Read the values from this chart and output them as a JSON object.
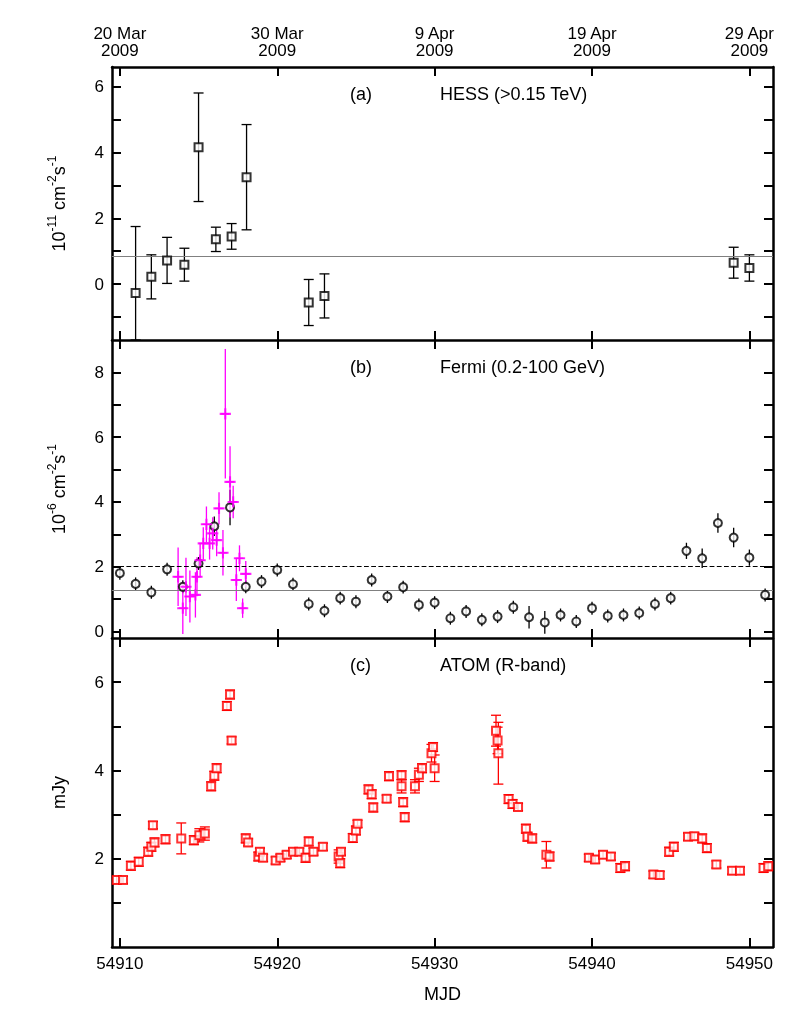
{
  "chart_data": [
    {
      "type": "scatter",
      "ylabel": "10$^{-11}$ cm$^{-2}$s$^{-1}$",
      "annotations": [
        "(a)",
        "HESS (>0.15 TeV)"
      ],
      "xlim": [
        54909.5,
        54951.5
      ],
      "xticks": [
        54910,
        54920,
        54930,
        54940,
        54950
      ],
      "x2lim": [
        "2009-03-19T12:00",
        "2009-04-30T12:00"
      ],
      "x2ticks": [
        {
          "value": "2009-03-20",
          "label": "20 Mar\n2009"
        },
        {
          "value": "2009-03-30",
          "label": "30 Mar\n2009"
        },
        {
          "value": "2009-04-09",
          "label": "9 Apr\n2009"
        },
        {
          "value": "2009-04-19",
          "label": "19 Apr\n2009"
        },
        {
          "value": "2009-04-29",
          "label": "29 Apr\n2009"
        }
      ],
      "ylim": [
        -1.7,
        6.6
      ],
      "yticks": [
        {
          "value": -1,
          "label": null
        },
        0,
        {
          "value": 1,
          "label": null
        },
        2,
        {
          "value": 3,
          "label": null
        },
        4,
        {
          "value": 5,
          "label": null
        },
        6
      ],
      "tick_labels": "y",
      "ref_lines": [
        {
          "axis": "y",
          "value": 0.84,
          "color": "#808080",
          "line_style": "solid"
        }
      ],
      "series": [
        {
          "color": "#000000",
          "marker": "square",
          "x": [
            54911.0,
            54912.0,
            54913.0,
            54914.1,
            54915.0,
            54916.1,
            54917.1,
            54918.05,
            54922.0,
            54923.0,
            54949.0,
            54950.0
          ],
          "values": [
            -0.27,
            0.22,
            0.72,
            0.59,
            4.16,
            1.36,
            1.45,
            3.25,
            -0.56,
            -0.36,
            0.65,
            0.49
          ],
          "errors": [
            [
              -1.7,
              1.75
            ],
            0.67,
            0.7,
            0.5,
            1.65,
            0.37,
            0.39,
            1.6,
            0.7,
            0.67,
            0.47,
            0.4
          ]
        }
      ]
    },
    {
      "type": "scatter",
      "ylabel": "10$^{-6}$ cm$^{-2}$s$^{-1}$",
      "annotations": [
        "(b)",
        "Fermi (0.2-100 GeV)"
      ],
      "xlim": [
        54909.5,
        54951.5
      ],
      "xticks": [
        54910,
        54920,
        54930,
        54940,
        54950
      ],
      "ylim": [
        -0.2,
        9.0
      ],
      "yticks": [
        0,
        {
          "value": 1,
          "label": null
        },
        2,
        {
          "value": 3,
          "label": null
        },
        4,
        {
          "value": 5,
          "label": null
        },
        6,
        {
          "value": 7,
          "label": null
        },
        8
      ],
      "tick_labels": "y",
      "ref_lines": [
        {
          "axis": "y",
          "value": 2.0,
          "color": "#000000",
          "line_style": "dashed"
        },
        {
          "axis": "y",
          "value": 1.28,
          "color": "#808080",
          "line_style": "solid"
        }
      ],
      "series": [
        {
          "color": "#000000",
          "marker": "circle",
          "x": [
            54910,
            54911,
            54912,
            54913,
            54914,
            54915,
            54916,
            54917,
            54918,
            54919,
            54920,
            54921,
            54922,
            54923,
            54924,
            54925,
            54926,
            54927,
            54928,
            54929,
            54930,
            54931,
            54932,
            54933,
            54934,
            54935,
            54936,
            54937,
            54938,
            54939,
            54940,
            54941,
            54942,
            54943,
            54944,
            54945,
            54946,
            54947,
            54948,
            54949,
            54950,
            54951
          ],
          "values": [
            1.8,
            1.47,
            1.21,
            1.92,
            1.38,
            2.1,
            3.25,
            3.83,
            1.38,
            1.54,
            1.9,
            1.46,
            0.85,
            0.64,
            1.03,
            0.92,
            1.59,
            1.08,
            1.37,
            0.82,
            0.89,
            0.41,
            0.62,
            0.36,
            0.46,
            0.75,
            0.44,
            0.28,
            0.51,
            0.31,
            0.72,
            0.48,
            0.51,
            0.57,
            0.85,
            1.03,
            2.49,
            2.26,
            3.35,
            2.9,
            2.28,
            1.13
          ],
          "errors": [
            0.2,
            0.2,
            0.2,
            0.2,
            0.2,
            0.2,
            0.3,
            0.55,
            0.2,
            0.2,
            0.2,
            0.2,
            0.2,
            0.2,
            0.2,
            0.2,
            0.2,
            0.2,
            0.2,
            0.2,
            0.2,
            0.2,
            0.2,
            0.2,
            0.2,
            0.2,
            0.35,
            0.35,
            0.2,
            0.2,
            0.2,
            0.2,
            0.2,
            0.2,
            0.2,
            0.2,
            0.25,
            0.3,
            0.3,
            0.3,
            0.25,
            0.2
          ]
        },
        {
          "color": "#ff00ff",
          "marker": "cross",
          "x": [
            54913.7,
            54914.0,
            54914.2,
            54914.45,
            54914.8,
            54914.9,
            54915.1,
            54915.3,
            54915.5,
            54915.7,
            54915.9,
            54916.15,
            54916.3,
            54916.55,
            54916.7,
            54917.0,
            54917.2,
            54917.4,
            54917.6,
            54917.8,
            54918.0
          ],
          "values": [
            1.69,
            0.72,
            1.38,
            1.08,
            1.13,
            1.69,
            2.2,
            2.72,
            3.31,
            2.72,
            3.03,
            2.82,
            3.8,
            2.43,
            6.72,
            4.62,
            4.0,
            1.59,
            2.26,
            0.72,
            1.78
          ],
          "errors": [
            0.9,
            0.8,
            0.9,
            0.8,
            0.7,
            0.6,
            0.5,
            0.5,
            0.55,
            0.5,
            0.5,
            0.5,
            0.5,
            0.7,
            2.0,
            1.1,
            0.5,
            0.65,
            0.4,
            0.3,
            0.4
          ],
          "xerrors": [
            0.25,
            0.25,
            0.25,
            0.25,
            0.25,
            0.25,
            0.25,
            0.25,
            0.25,
            0.25,
            0.25,
            0.25,
            0.25,
            0.25,
            0.25,
            0.25,
            0.25,
            0.25,
            0.25,
            0.25,
            0.25
          ]
        }
      ]
    },
    {
      "type": "scatter",
      "xlabel": "MJD",
      "ylabel": "mJy",
      "annotations": [
        "(c)",
        "ATOM (R-band)"
      ],
      "xlim": [
        54909.5,
        54951.5
      ],
      "xticks": [
        54910,
        54920,
        54930,
        54940,
        54950
      ],
      "ylim": [
        0,
        7
      ],
      "yticks": [
        {
          "value": 1,
          "label": null
        },
        2,
        {
          "value": 3,
          "label": null
        },
        4,
        {
          "value": 5,
          "label": null
        },
        6
      ],
      "series": [
        {
          "color": "#ff0000",
          "marker": "square",
          "x": [
            54909.8,
            54910.2,
            54910.7,
            54911.2,
            54911.8,
            54912.0,
            54912.2,
            54912.1,
            54912.9,
            54913.9,
            54914.7,
            54915.05,
            54915.4,
            54915.8,
            54916.0,
            54916.15,
            54916.8,
            54917.0,
            54917.1,
            54918.0,
            54918.15,
            54918.8,
            54918.9,
            54919.1,
            54919.9,
            54920.2,
            54920.6,
            54921.0,
            54921.4,
            54921.8,
            54922.0,
            54922.3,
            54922.9,
            54923.9,
            54924.0,
            54924.05,
            54924.8,
            54925.0,
            54925.1,
            54925.8,
            54926.0,
            54926.1,
            54926.95,
            54927.1,
            54927.9,
            54927.9,
            54928.0,
            54928.1,
            54928.75,
            54929.0,
            54929.2,
            54929.8,
            54929.9,
            54930.0,
            54933.9,
            54934.0,
            54934.05,
            54934.7,
            54934.95,
            54935.3,
            54935.8,
            54935.9,
            54936.2,
            54937.1,
            54937.3,
            54939.8,
            54940.2,
            54940.7,
            54941.2,
            54941.8,
            54942.1,
            54943.9,
            54944.3,
            54944.9,
            54945.2,
            54946.1,
            54946.5,
            54947.0,
            54947.3,
            54947.9,
            54948.9,
            54949.4,
            54950.9,
            54951.2
          ],
          "values": [
            1.52,
            1.52,
            1.84,
            1.93,
            2.16,
            2.27,
            2.37,
            2.76,
            2.44,
            2.46,
            2.42,
            2.53,
            2.57,
            3.64,
            3.88,
            4.05,
            5.46,
            5.72,
            4.68,
            2.46,
            2.37,
            2.05,
            2.16,
            2.02,
            1.96,
            2.02,
            2.09,
            2.16,
            2.16,
            2.02,
            2.39,
            2.16,
            2.27,
            2.05,
            1.9,
            2.16,
            2.47,
            2.64,
            2.79,
            3.57,
            3.46,
            3.16,
            3.36,
            3.87,
            3.64,
            3.89,
            3.28,
            2.94,
            3.64,
            3.9,
            4.05,
            4.39,
            4.53,
            4.05,
            4.9,
            4.68,
            4.39,
            3.35,
            3.24,
            3.17,
            2.68,
            2.5,
            2.46,
            2.09,
            2.05,
            2.02,
            1.98,
            2.09,
            2.05,
            1.79,
            1.83,
            1.64,
            1.63,
            2.16,
            2.27,
            2.5,
            2.51,
            2.46,
            2.24,
            1.87,
            1.73,
            1.73,
            1.79,
            1.83
          ],
          "errors": [
            0.08,
            0.08,
            0.1,
            0.1,
            0.1,
            0.1,
            0.1,
            0.08,
            0.1,
            0.35,
            0.1,
            0.15,
            0.15,
            0.1,
            0.1,
            0.1,
            0.1,
            0.1,
            0.08,
            0.1,
            0.08,
            0.1,
            0.08,
            0.08,
            0.08,
            0.08,
            0.08,
            0.08,
            0.08,
            0.1,
            0.1,
            0.08,
            0.08,
            0.15,
            0.1,
            0.08,
            0.1,
            0.1,
            0.08,
            0.1,
            0.1,
            0.1,
            0.08,
            0.1,
            0.15,
            0.1,
            0.1,
            0.1,
            0.15,
            0.15,
            0.1,
            0.2,
            0.1,
            0.3,
            0.35,
            0.3,
            0.7,
            0.1,
            0.1,
            0.08,
            0.1,
            0.1,
            0.1,
            0.3,
            0.1,
            0.08,
            0.08,
            0.08,
            0.08,
            0.1,
            0.1,
            0.08,
            0.08,
            0.1,
            0.1,
            0.08,
            0.08,
            0.1,
            0.1,
            0.08,
            0.08,
            0.08,
            0.1,
            0.1
          ]
        }
      ]
    }
  ]
}
